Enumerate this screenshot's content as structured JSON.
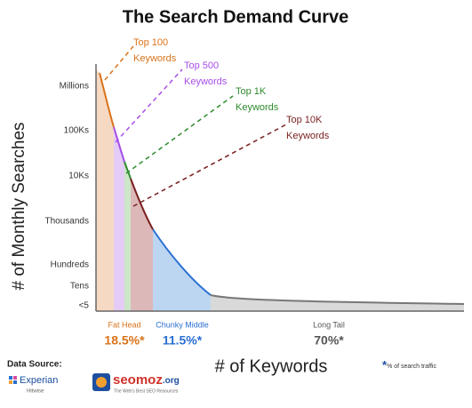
{
  "chart_data": {
    "type": "area",
    "title": "The Search Demand Curve",
    "y_label": "# of Monthly Searches",
    "x_label": "# of Keywords",
    "y_levels": [
      "Millions",
      "100Ks",
      "10Ks",
      "Thousands",
      "Hundreds",
      "Tens",
      "<5"
    ],
    "callouts": [
      {
        "lines": [
          "Top 100",
          "Keywords"
        ],
        "color": "#d9731a"
      },
      {
        "lines": [
          "Top 500",
          "Keywords"
        ],
        "color": "#a64ee8"
      },
      {
        "lines": [
          "Top 1K",
          "Keywords"
        ],
        "color": "#2e8b2e"
      },
      {
        "lines": [
          "Top 10K",
          "Keywords"
        ],
        "color": "#7a1f1f"
      }
    ],
    "categories": [
      "Fat Head",
      "Chunky Middle",
      "Long Tail"
    ],
    "values": [
      18.5,
      11.5,
      70
    ],
    "value_labels": [
      "18.5%*",
      "11.5%*",
      "70%*"
    ],
    "colors": [
      "#d9731a",
      "#2a6fd1",
      "#555555"
    ],
    "footnote": {
      "mark": "*",
      "text": "% of search traffic"
    },
    "source": {
      "label": "Data Source:",
      "experian": "Experian",
      "hitwise": "Hitwise",
      "seomoz": "seomoz",
      "seomoz_suffix": ".org",
      "seomoz_tagline": "The Web's Best SEO Resources"
    }
  }
}
